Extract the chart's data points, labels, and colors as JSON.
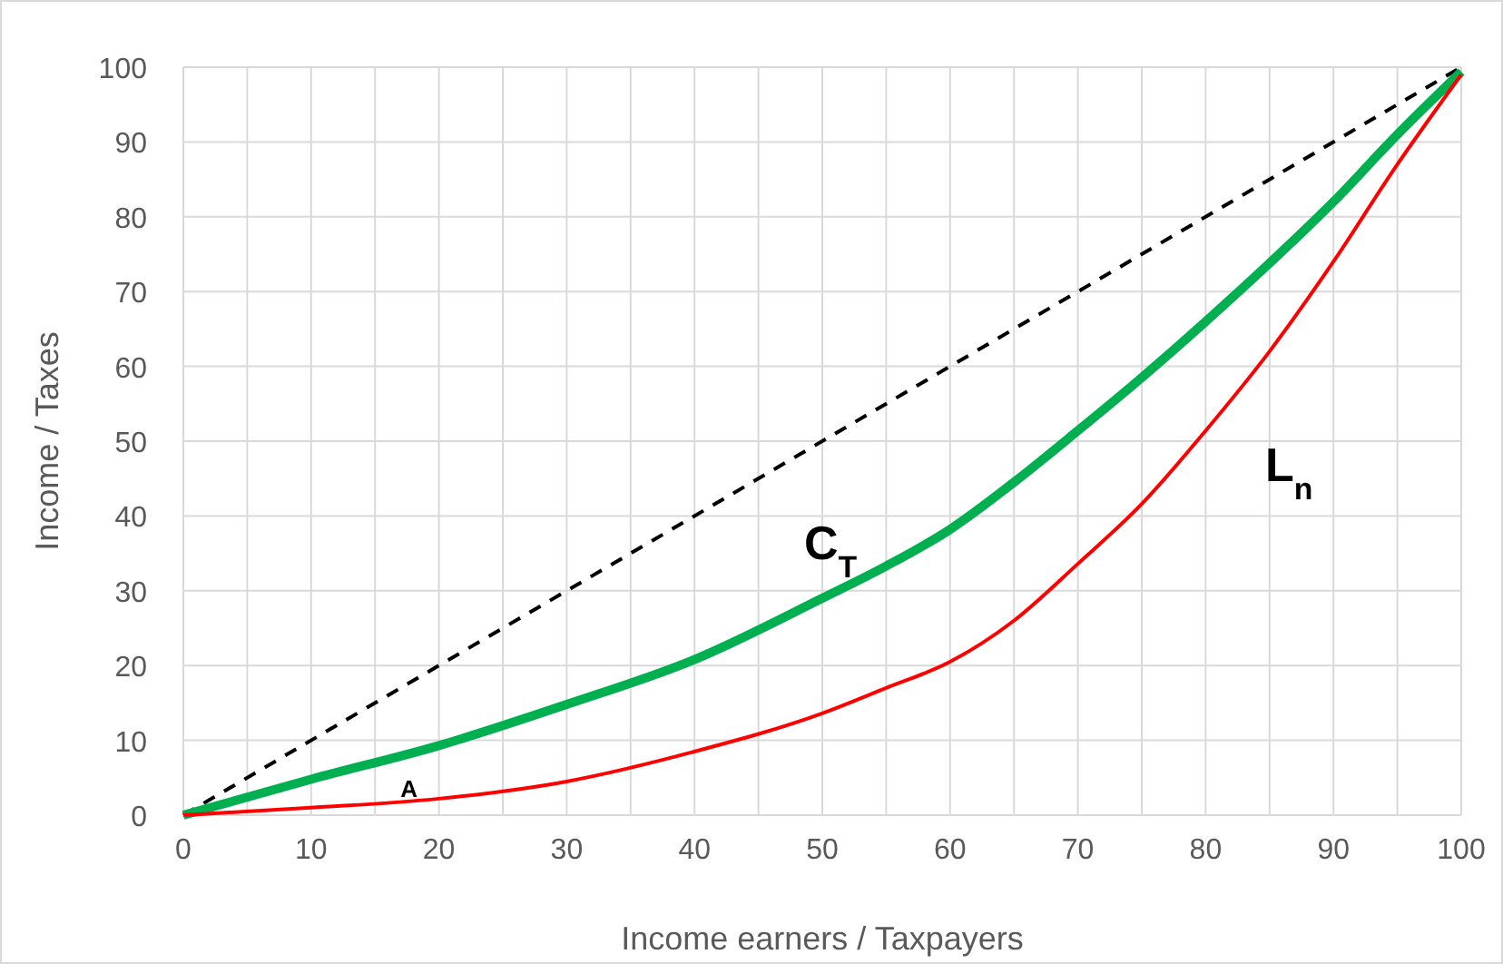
{
  "chart_data": {
    "type": "line",
    "xlabel": "Income earners /  Taxpayers",
    "ylabel": "Income / Taxes",
    "x": [
      0,
      10,
      20,
      30,
      40,
      50,
      55,
      60,
      65,
      70,
      75,
      80,
      85,
      90,
      95,
      100
    ],
    "series": [
      {
        "color": "#000000",
        "line_style": "dashed",
        "x": [
          0,
          100
        ],
        "values": [
          0,
          100
        ]
      },
      {
        "color": "#00b050",
        "values": [
          0,
          4.8,
          9.3,
          14.8,
          20.8,
          29,
          33.3,
          38.2,
          44.5,
          51.4,
          58.5,
          66,
          73.8,
          82,
          91,
          99.4
        ]
      },
      {
        "color": "#ff0000",
        "values": [
          0,
          1,
          2.2,
          4.5,
          8.5,
          13.6,
          17,
          20.5,
          26,
          33.6,
          41.6,
          51.4,
          62,
          74,
          87,
          99
        ]
      }
    ],
    "xlim": [
      0,
      100
    ],
    "ylim": [
      0,
      100
    ],
    "xticks": [
      0,
      10,
      20,
      30,
      40,
      50,
      60,
      70,
      80,
      90,
      100
    ],
    "yticks": [
      0,
      10,
      20,
      30,
      40,
      50,
      60,
      70,
      80,
      90,
      100
    ],
    "grid": true,
    "marker": "none",
    "annotations": [
      "C$_{T}$",
      "L$_{n}$",
      {
        "text": "A",
        "x": 17,
        "y": 1.5
      }
    ]
  }
}
